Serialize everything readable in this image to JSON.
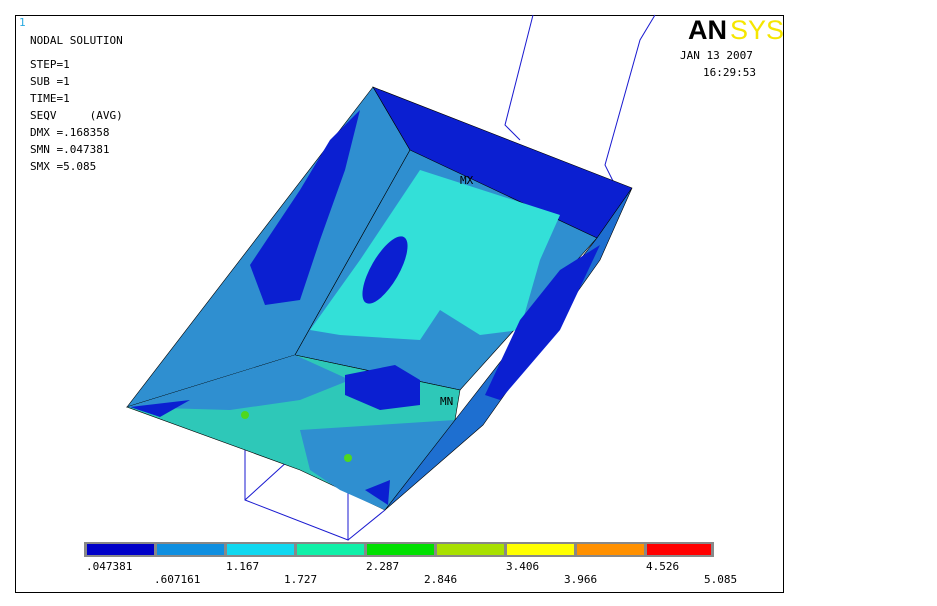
{
  "window_number": "1",
  "title": "NODAL SOLUTION",
  "info": [
    "STEP=1",
    "SUB =1",
    "TIME=1",
    "SEQV     (AVG)",
    "DMX =.168358",
    "SMN =.047381",
    "SMX =5.085"
  ],
  "logo": {
    "part1": "AN",
    "part2": "SYS"
  },
  "date": "JAN 13 2007",
  "time": "16:29:53",
  "markers": {
    "max": "MX",
    "min": "MN"
  },
  "legend": {
    "top_labels": [
      ".047381",
      "1.167",
      "2.287",
      "3.406",
      "4.526"
    ],
    "bottom_labels": [
      ".607161",
      "1.727",
      "2.846",
      "3.966",
      "5.085"
    ]
  }
}
